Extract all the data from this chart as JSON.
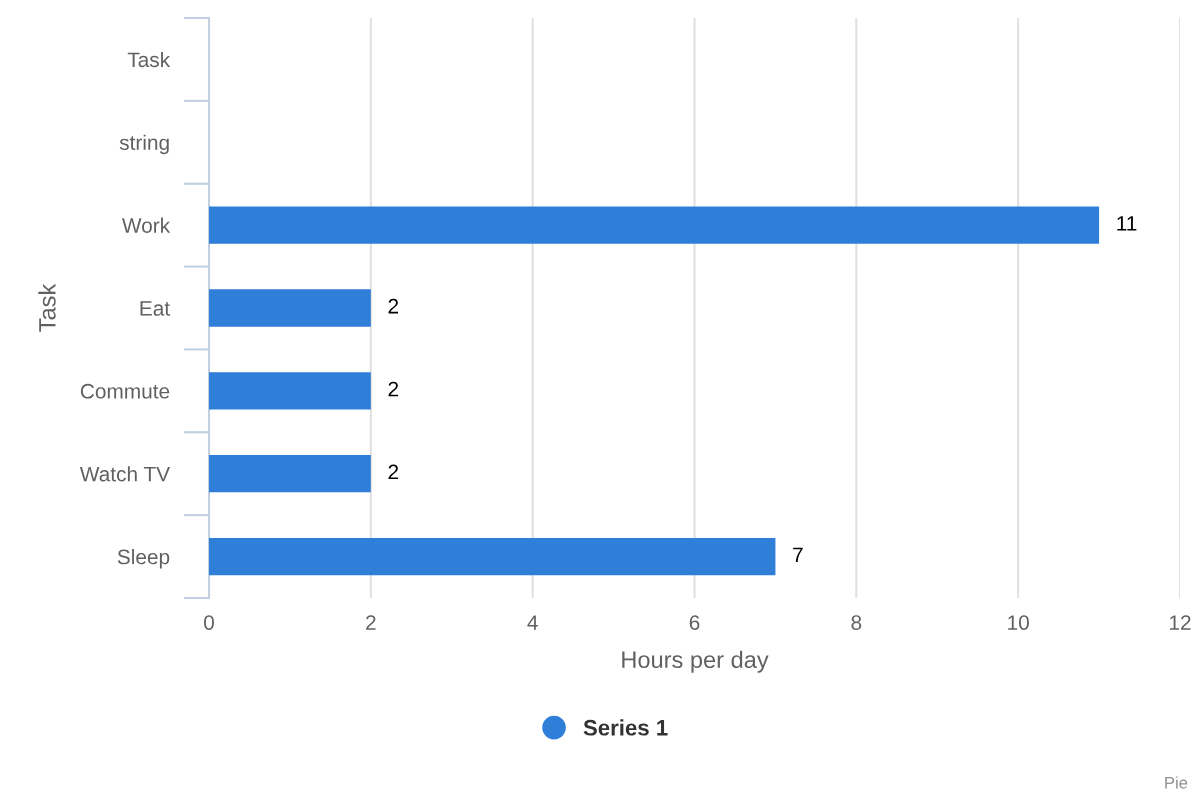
{
  "chart_data": {
    "type": "bar",
    "orientation": "horizontal",
    "xlabel": "Hours per day",
    "ylabel": "Task",
    "categories": [
      "Task",
      "string",
      "Work",
      "Eat",
      "Commute",
      "Watch TV",
      "Sleep"
    ],
    "series": [
      {
        "name": "Series 1",
        "color": "#2f7ed8",
        "values": [
          null,
          null,
          11,
          2,
          2,
          2,
          7
        ]
      }
    ],
    "xlim": [
      0,
      12
    ],
    "xticks": [
      0,
      2,
      4,
      6,
      8,
      10,
      12
    ],
    "grid": "x",
    "data_labels": true,
    "legend": "bottom",
    "annotations": [
      "Pie"
    ]
  }
}
